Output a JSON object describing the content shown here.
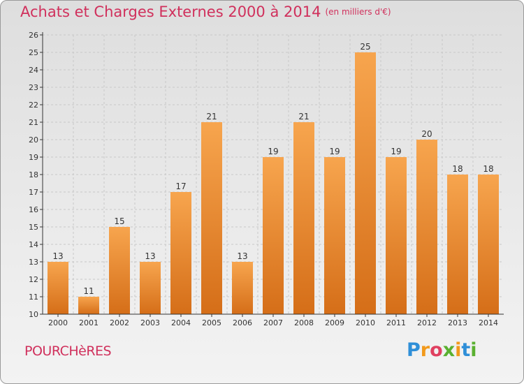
{
  "title": "Achats et Charges Externes 2000 à 2014",
  "unit": "(en milliers d'€)",
  "commune": "POURCHèRES",
  "logo": {
    "letters": [
      {
        "ch": "P",
        "color": "#2f8fd8"
      },
      {
        "ch": "r",
        "color": "#f29a1c"
      },
      {
        "ch": "o",
        "color": "#e04060"
      },
      {
        "ch": "x",
        "color": "#5ab030"
      },
      {
        "ch": "i",
        "color": "#f29a1c"
      },
      {
        "ch": "t",
        "color": "#2f8fd8"
      },
      {
        "ch": "i",
        "color": "#5ab030"
      }
    ]
  },
  "colors": {
    "accent": "#d0305c",
    "bar_light": "#f7a54e",
    "bar_dark": "#d56e18",
    "grid": "#c8c8c8",
    "axis": "#333333"
  },
  "chart_data": {
    "type": "bar",
    "categories": [
      "2000",
      "2001",
      "2002",
      "2003",
      "2004",
      "2005",
      "2006",
      "2007",
      "2008",
      "2009",
      "2010",
      "2011",
      "2012",
      "2013",
      "2014"
    ],
    "values": [
      13,
      11,
      15,
      13,
      17,
      21,
      13,
      19,
      21,
      19,
      25,
      19,
      20,
      18,
      18
    ],
    "data_labels": [
      "13",
      "11",
      "15",
      "13",
      "17",
      "21",
      "13",
      "19",
      "21",
      "19",
      "25",
      "19",
      "20",
      "18",
      "18"
    ],
    "y_ticks": [
      10,
      11,
      12,
      13,
      14,
      15,
      16,
      17,
      18,
      19,
      20,
      21,
      22,
      23,
      24,
      25,
      26
    ],
    "ylim": [
      10,
      26
    ],
    "grid": true,
    "xlabel": "",
    "ylabel": ""
  }
}
